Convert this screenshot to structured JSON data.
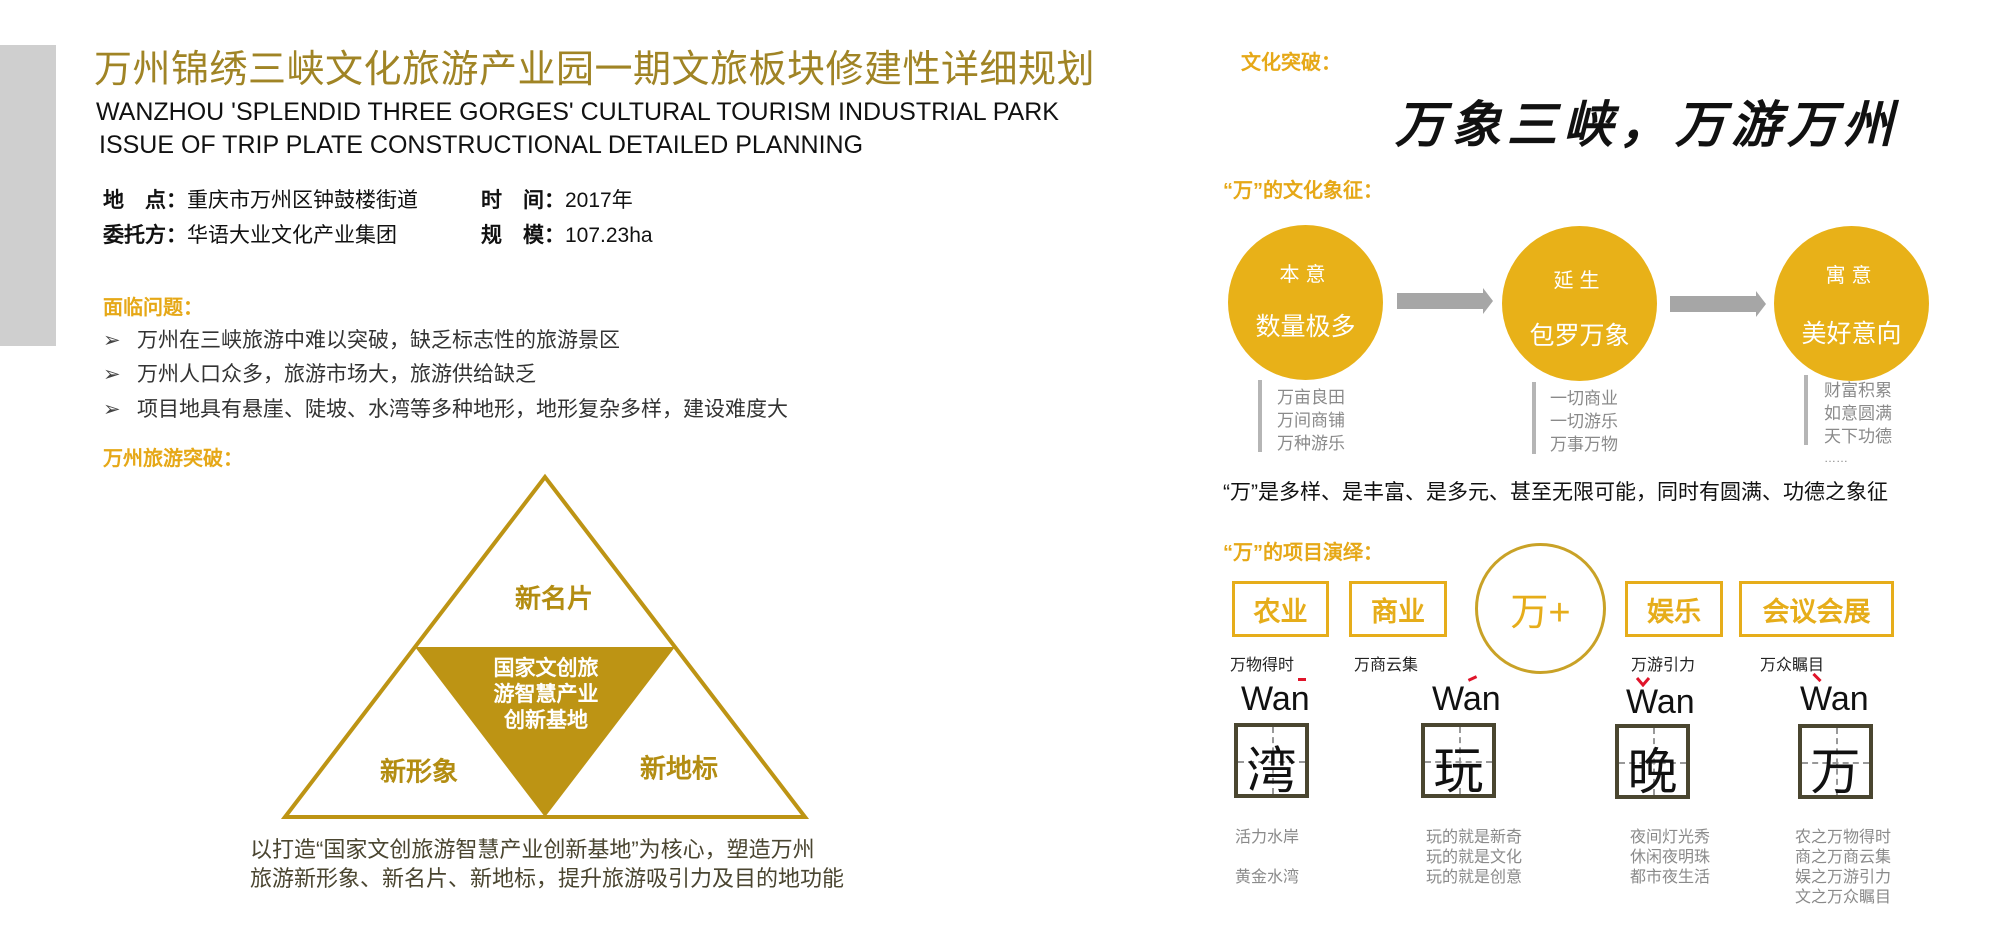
{
  "header": {
    "title": "万州锦绣三峡文化旅游产业园一期文旅板块修建性详细规划",
    "subtitle_line1": "WANZHOU 'SPLENDID THREE GORGES' CULTURAL TOURISM INDUSTRIAL PARK",
    "subtitle_line2": "ISSUE OF TRIP PLATE CONSTRUCTIONAL DETAILED PLANNING"
  },
  "info": {
    "location_label": "地　点：",
    "location_value": "重庆市万州区钟鼓楼街道",
    "time_label": "时　间：",
    "time_value": "2017年",
    "client_label": "委托方：",
    "client_value": "华语大业文化产业集团",
    "scale_label": "规　模：",
    "scale_value": "107.23ha"
  },
  "problems": {
    "heading": "面临问题：",
    "bullet_icon": "chevron-right-icon",
    "items": [
      "万州在三峡旅游中难以突破，缺乏标志性的旅游景区",
      "万州人口众多，旅游市场大，旅游供给缺乏",
      "项目地具有悬崖、陡坡、水湾等多种地形，地形复杂多样，建设难度大"
    ]
  },
  "tourism": {
    "heading": "万州旅游突破：",
    "top": "新名片",
    "left": "新形象",
    "right": "新地标",
    "center": [
      "国家文创旅",
      "游智慧产业",
      "创新基地"
    ],
    "caption": [
      "以打造“国家文创旅游智慧产业创新基地”为核心，塑造万州",
      "旅游新形象、新名片、新地标，提升旅游吸引力及目的地功能"
    ]
  },
  "culture": {
    "heading": "文化突破：",
    "slogan": "万象三峡，万游万州",
    "symbol_heading": "“万”的文化象征：",
    "circles": [
      {
        "label": "本意",
        "value": "数量极多",
        "items": [
          "万亩良田",
          "万间商铺",
          "万种游乐"
        ]
      },
      {
        "label": "延生",
        "value": "包罗万象",
        "items": [
          "一切商业",
          "一切游乐",
          "万事万物"
        ]
      },
      {
        "label": "寓意",
        "value": "美好意向",
        "items": [
          "财富积累",
          "如意圆满",
          "天下功德",
          "……"
        ]
      }
    ],
    "statement": "“万”是多样、是丰富、是多元、甚至无限可能，同时有圆满、功德之象征"
  },
  "project": {
    "heading": "“万”的项目演绎：",
    "center": "万+",
    "boxes": [
      {
        "label": "农业",
        "caption": "万物得时"
      },
      {
        "label": "商业",
        "caption": "万商云集"
      },
      {
        "label": "娱乐",
        "caption": "万游引力"
      },
      {
        "label": "会议会展",
        "caption": "万众瞩目"
      }
    ],
    "chars": [
      {
        "pinyin": "Wan",
        "tone": "1",
        "char": "湾",
        "desc": [
          "活力水岸",
          "",
          "黄金水湾"
        ]
      },
      {
        "pinyin": "Wan",
        "tone": "2",
        "char": "玩",
        "desc": [
          "玩的就是新奇",
          "玩的就是文化",
          "玩的就是创意"
        ]
      },
      {
        "pinyin": "Wan",
        "tone": "3",
        "char": "晚",
        "desc": [
          "夜间灯光秀",
          "休闲夜明珠",
          "都市夜生活"
        ]
      },
      {
        "pinyin": "Wan",
        "tone": "4",
        "char": "万",
        "desc": [
          "农之万物得时",
          "商之万商云集",
          "娱之万游引力",
          "文之万众瞩目"
        ]
      }
    ]
  },
  "colors": {
    "title_gold": "#a08425",
    "heading_gold": "#e6a817",
    "circle_fill": "#e8b118",
    "triangle_gold": "#bd9414",
    "tone_red": "#e0142a"
  }
}
